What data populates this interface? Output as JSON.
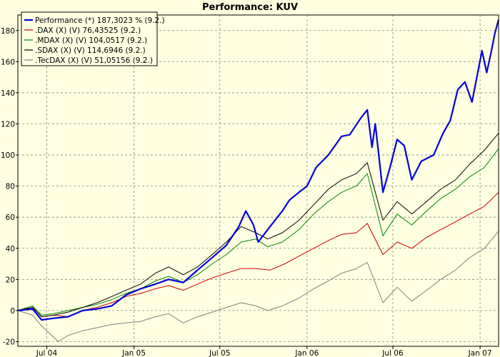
{
  "chart_data": {
    "type": "line",
    "title": "Performance: KUV",
    "xlabel": "",
    "ylabel": "",
    "ylim": [
      -23,
      190
    ],
    "y_ticks": [
      -20,
      0,
      20,
      40,
      60,
      80,
      100,
      120,
      140,
      160,
      180
    ],
    "x_domain": [
      "2004-05-01",
      "2007-02-09"
    ],
    "x_ticks": [
      {
        "label": "Jul 04",
        "date": "2004-07-01"
      },
      {
        "label": "Jan 05",
        "date": "2005-01-01"
      },
      {
        "label": "Jul 05",
        "date": "2005-07-01"
      },
      {
        "label": "Jan 06",
        "date": "2006-01-01"
      },
      {
        "label": "Jul 06",
        "date": "2006-07-01"
      },
      {
        "label": "Jan 07",
        "date": "2007-01-01"
      }
    ],
    "grid": true,
    "legend_position": "top-left",
    "series": [
      {
        "name": "Performance (*) 187,3023 % (9.2.)",
        "color": "#0000dd",
        "width": 2.2,
        "points": [
          [
            "2004-05-01",
            0
          ],
          [
            "2004-06-01",
            1
          ],
          [
            "2004-06-20",
            -6
          ],
          [
            "2004-07-15",
            -5
          ],
          [
            "2004-08-15",
            -4
          ],
          [
            "2004-09-15",
            0
          ],
          [
            "2004-10-15",
            1
          ],
          [
            "2004-11-15",
            3
          ],
          [
            "2004-12-15",
            10
          ],
          [
            "2005-01-15",
            14
          ],
          [
            "2005-02-15",
            17
          ],
          [
            "2005-03-15",
            20
          ],
          [
            "2005-04-15",
            18
          ],
          [
            "2005-05-15",
            26
          ],
          [
            "2005-06-15",
            34
          ],
          [
            "2005-07-15",
            42
          ],
          [
            "2005-08-10",
            54
          ],
          [
            "2005-08-25",
            64
          ],
          [
            "2005-09-10",
            55
          ],
          [
            "2005-09-20",
            44
          ],
          [
            "2005-10-10",
            52
          ],
          [
            "2005-11-10",
            64
          ],
          [
            "2005-11-25",
            71
          ],
          [
            "2005-12-15",
            76
          ],
          [
            "2006-01-01",
            80
          ],
          [
            "2006-01-20",
            92
          ],
          [
            "2006-02-15",
            100
          ],
          [
            "2006-03-15",
            112
          ],
          [
            "2006-04-01",
            113
          ],
          [
            "2006-04-25",
            124
          ],
          [
            "2006-05-08",
            129
          ],
          [
            "2006-05-18",
            105
          ],
          [
            "2006-05-25",
            120
          ],
          [
            "2006-06-10",
            76
          ],
          [
            "2006-06-25",
            92
          ],
          [
            "2006-07-10",
            110
          ],
          [
            "2006-07-25",
            106
          ],
          [
            "2006-08-10",
            84
          ],
          [
            "2006-08-30",
            96
          ],
          [
            "2006-09-25",
            100
          ],
          [
            "2006-10-15",
            114
          ],
          [
            "2006-10-30",
            122
          ],
          [
            "2006-11-15",
            142
          ],
          [
            "2006-11-30",
            147
          ],
          [
            "2006-12-15",
            134
          ],
          [
            "2007-01-05",
            167
          ],
          [
            "2007-01-15",
            153
          ],
          [
            "2007-01-25",
            167
          ],
          [
            "2007-02-01",
            178
          ],
          [
            "2007-02-09",
            187
          ]
        ]
      },
      {
        "name": ".DAX (X) (V) 76,43525 (9.2.)",
        "color": "#cc0000",
        "width": 1,
        "points": [
          [
            "2004-05-01",
            0
          ],
          [
            "2004-06-01",
            2
          ],
          [
            "2004-06-20",
            -4
          ],
          [
            "2004-07-15",
            -3
          ],
          [
            "2004-08-15",
            -4
          ],
          [
            "2004-09-15",
            0
          ],
          [
            "2004-10-15",
            2
          ],
          [
            "2004-11-15",
            5
          ],
          [
            "2004-12-15",
            9
          ],
          [
            "2005-01-15",
            11
          ],
          [
            "2005-02-15",
            14
          ],
          [
            "2005-03-15",
            16
          ],
          [
            "2005-04-15",
            13
          ],
          [
            "2005-05-15",
            17
          ],
          [
            "2005-06-15",
            21
          ],
          [
            "2005-07-15",
            24
          ],
          [
            "2005-08-15",
            27
          ],
          [
            "2005-09-15",
            27
          ],
          [
            "2005-10-15",
            26
          ],
          [
            "2005-11-15",
            30
          ],
          [
            "2005-12-15",
            35
          ],
          [
            "2006-01-15",
            40
          ],
          [
            "2006-02-15",
            45
          ],
          [
            "2006-03-15",
            49
          ],
          [
            "2006-04-15",
            50
          ],
          [
            "2006-05-08",
            56
          ],
          [
            "2006-06-10",
            36
          ],
          [
            "2006-07-10",
            44
          ],
          [
            "2006-08-10",
            40
          ],
          [
            "2006-09-10",
            47
          ],
          [
            "2006-10-10",
            52
          ],
          [
            "2006-11-10",
            57
          ],
          [
            "2006-12-10",
            62
          ],
          [
            "2007-01-10",
            67
          ],
          [
            "2007-02-09",
            76
          ]
        ]
      },
      {
        "name": ".MDAX (X) (V) 104,0517 (9.2.)",
        "color": "#008800",
        "width": 1,
        "points": [
          [
            "2004-05-01",
            0
          ],
          [
            "2004-06-01",
            3
          ],
          [
            "2004-06-20",
            -3
          ],
          [
            "2004-07-15",
            -2
          ],
          [
            "2004-08-15",
            0
          ],
          [
            "2004-09-15",
            2
          ],
          [
            "2004-10-15",
            4
          ],
          [
            "2004-11-15",
            7
          ],
          [
            "2004-12-15",
            11
          ],
          [
            "2005-01-15",
            14
          ],
          [
            "2005-02-15",
            19
          ],
          [
            "2005-03-15",
            22
          ],
          [
            "2005-04-15",
            18
          ],
          [
            "2005-05-15",
            23
          ],
          [
            "2005-06-15",
            30
          ],
          [
            "2005-07-15",
            36
          ],
          [
            "2005-08-15",
            44
          ],
          [
            "2005-09-15",
            46
          ],
          [
            "2005-10-10",
            41
          ],
          [
            "2005-11-10",
            44
          ],
          [
            "2005-12-15",
            52
          ],
          [
            "2006-01-15",
            62
          ],
          [
            "2006-02-15",
            70
          ],
          [
            "2006-03-15",
            76
          ],
          [
            "2006-04-15",
            80
          ],
          [
            "2006-05-08",
            88
          ],
          [
            "2006-06-10",
            48
          ],
          [
            "2006-07-10",
            62
          ],
          [
            "2006-08-10",
            55
          ],
          [
            "2006-09-10",
            64
          ],
          [
            "2006-10-10",
            72
          ],
          [
            "2006-11-10",
            78
          ],
          [
            "2006-12-10",
            86
          ],
          [
            "2007-01-10",
            92
          ],
          [
            "2007-02-09",
            104
          ]
        ]
      },
      {
        "name": ".SDAX (X) (V) 114,6946 (9.2.)",
        "color": "#000000",
        "width": 1,
        "points": [
          [
            "2004-05-01",
            0
          ],
          [
            "2004-06-01",
            2
          ],
          [
            "2004-06-20",
            -4
          ],
          [
            "2004-07-15",
            -3
          ],
          [
            "2004-08-15",
            -1
          ],
          [
            "2004-09-15",
            2
          ],
          [
            "2004-10-15",
            5
          ],
          [
            "2004-11-15",
            9
          ],
          [
            "2004-12-15",
            13
          ],
          [
            "2005-01-15",
            17
          ],
          [
            "2005-02-15",
            24
          ],
          [
            "2005-03-15",
            28
          ],
          [
            "2005-04-15",
            23
          ],
          [
            "2005-05-15",
            28
          ],
          [
            "2005-06-15",
            36
          ],
          [
            "2005-07-15",
            44
          ],
          [
            "2005-08-15",
            54
          ],
          [
            "2005-09-15",
            50
          ],
          [
            "2005-10-10",
            46
          ],
          [
            "2005-11-10",
            50
          ],
          [
            "2005-12-15",
            58
          ],
          [
            "2006-01-15",
            68
          ],
          [
            "2006-02-15",
            78
          ],
          [
            "2006-03-15",
            84
          ],
          [
            "2006-04-15",
            88
          ],
          [
            "2006-05-08",
            95
          ],
          [
            "2006-06-10",
            58
          ],
          [
            "2006-07-10",
            70
          ],
          [
            "2006-08-10",
            62
          ],
          [
            "2006-09-10",
            70
          ],
          [
            "2006-10-10",
            78
          ],
          [
            "2006-11-10",
            84
          ],
          [
            "2006-12-10",
            94
          ],
          [
            "2007-01-10",
            103
          ],
          [
            "2007-02-09",
            114
          ]
        ]
      },
      {
        "name": ".TecDAX (X) (V) 51,05156 (9.2.)",
        "color": "#808080",
        "width": 1,
        "points": [
          [
            "2004-05-01",
            0
          ],
          [
            "2004-06-01",
            -3
          ],
          [
            "2004-06-20",
            -10
          ],
          [
            "2004-07-15",
            -17
          ],
          [
            "2004-07-25",
            -20
          ],
          [
            "2004-08-15",
            -16
          ],
          [
            "2004-09-15",
            -13
          ],
          [
            "2004-10-15",
            -11
          ],
          [
            "2004-11-15",
            -9
          ],
          [
            "2004-12-15",
            -8
          ],
          [
            "2005-01-15",
            -7
          ],
          [
            "2005-02-15",
            -4
          ],
          [
            "2005-03-15",
            -2
          ],
          [
            "2005-04-15",
            -8
          ],
          [
            "2005-05-15",
            -4
          ],
          [
            "2005-06-15",
            -1
          ],
          [
            "2005-07-15",
            2
          ],
          [
            "2005-08-15",
            5
          ],
          [
            "2005-09-15",
            3
          ],
          [
            "2005-10-10",
            0
          ],
          [
            "2005-11-10",
            3
          ],
          [
            "2005-12-15",
            8
          ],
          [
            "2006-01-15",
            14
          ],
          [
            "2006-02-15",
            19
          ],
          [
            "2006-03-15",
            24
          ],
          [
            "2006-04-15",
            27
          ],
          [
            "2006-05-08",
            31
          ],
          [
            "2006-06-10",
            5
          ],
          [
            "2006-07-10",
            15
          ],
          [
            "2006-08-10",
            6
          ],
          [
            "2006-09-10",
            13
          ],
          [
            "2006-10-10",
            20
          ],
          [
            "2006-11-10",
            26
          ],
          [
            "2006-12-10",
            34
          ],
          [
            "2007-01-10",
            40
          ],
          [
            "2007-02-09",
            51
          ]
        ]
      }
    ]
  }
}
